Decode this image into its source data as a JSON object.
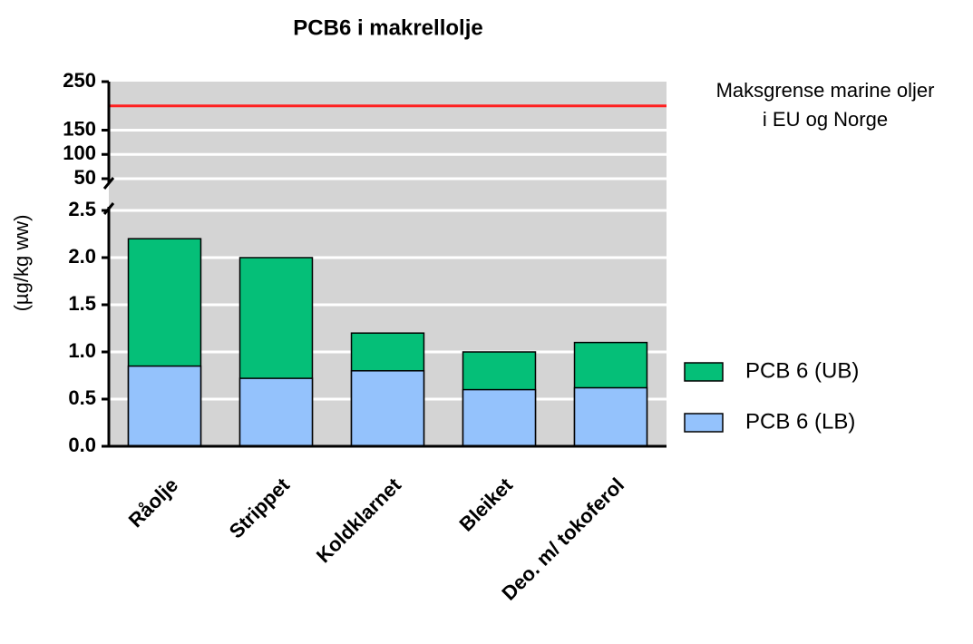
{
  "chart_data": {
    "type": "bar",
    "title": "PCB6 i makrellolje",
    "y_label": "(µg/kg ww)",
    "categories": [
      "Råolje",
      "Strippet",
      "Koldklarnet",
      "Bleiket",
      "Deo. m/ tokoferol"
    ],
    "series": [
      {
        "name": "PCB 6 (UB)",
        "color": "#05bf78",
        "values": [
          2.2,
          2.0,
          1.2,
          1.0,
          1.1
        ]
      },
      {
        "name": "PCB 6 (LB)",
        "color": "#94c2fc",
        "values": [
          0.85,
          0.72,
          0.8,
          0.6,
          0.62
        ]
      }
    ],
    "ylim": [
      0,
      2.5
    ],
    "yticks": [
      {
        "value": 0,
        "label": "0.0"
      },
      0.5,
      {
        "value": 1,
        "label": "1.0"
      },
      1.5,
      {
        "value": 2,
        "label": "2.0"
      },
      2.5
    ],
    "y_upper_lim": [
      50,
      250
    ],
    "y_upper_ticks": [
      50,
      100,
      150,
      250
    ],
    "reference_line": {
      "value": 200,
      "color": "#ff2020",
      "label": [
        "Maksgrense marine oljer",
        "i EU og Norge"
      ]
    },
    "grid": true,
    "legend": "right"
  }
}
